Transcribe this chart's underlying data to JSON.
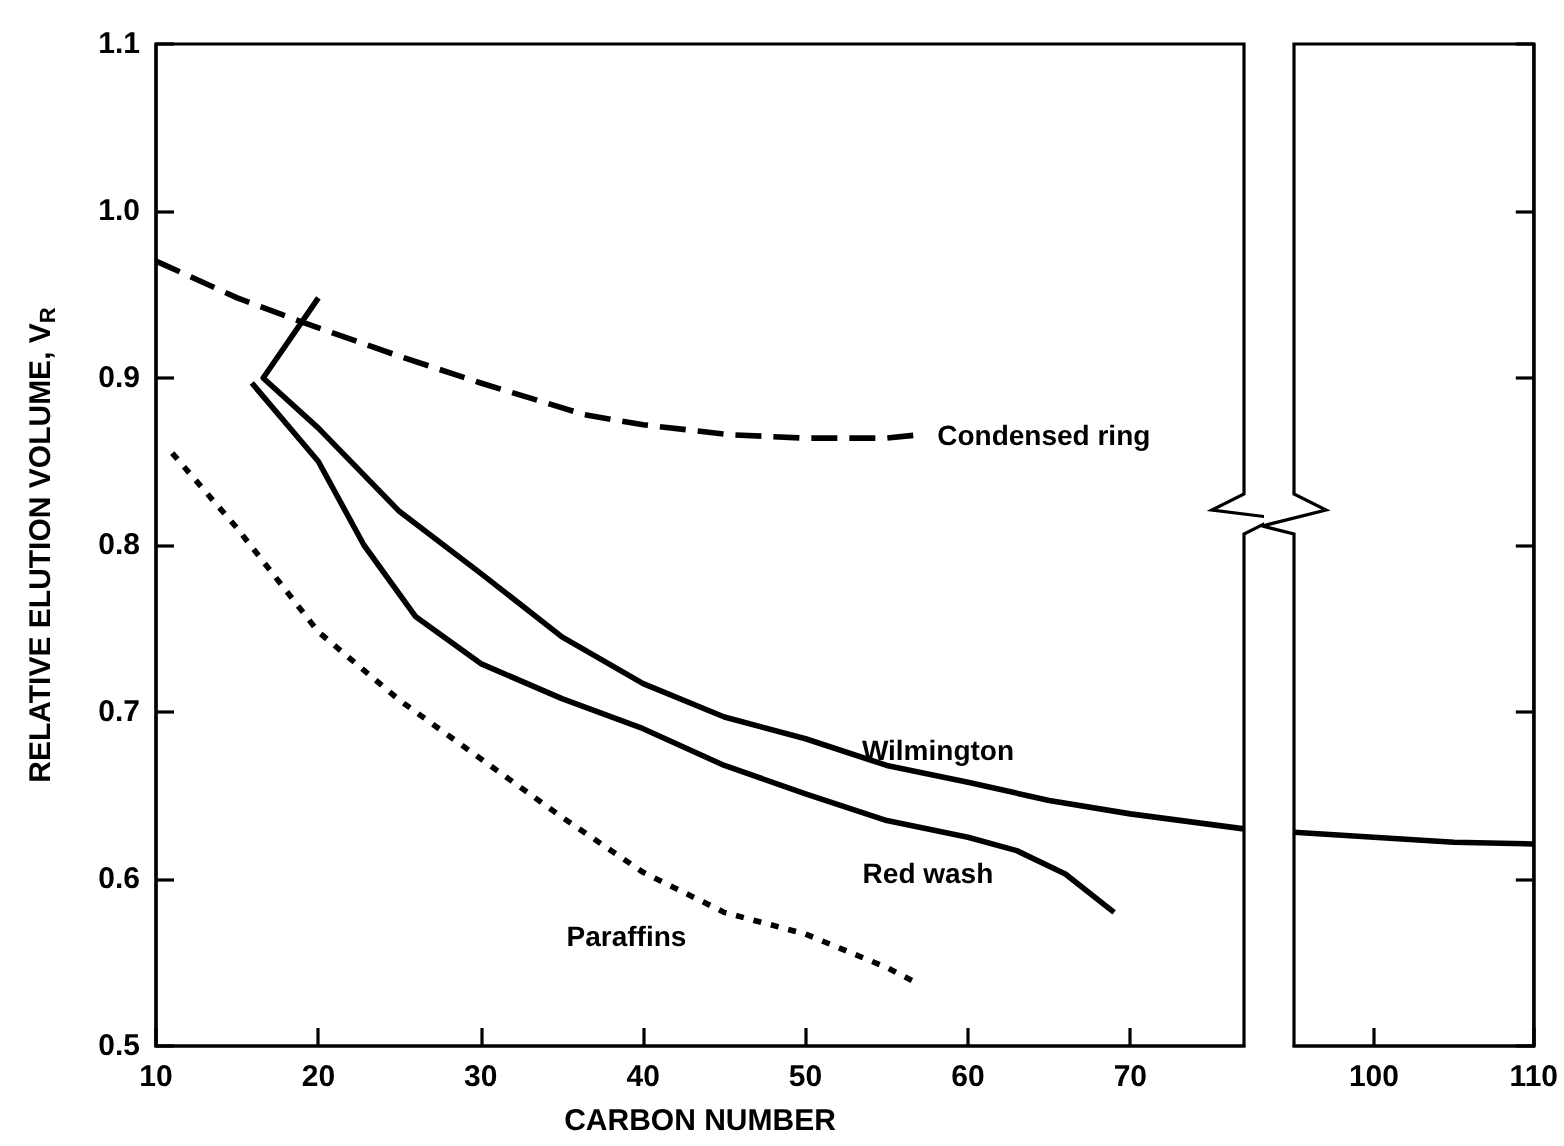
{
  "chart_data": [
    {
      "type": "line",
      "xlabel": "CARBON NUMBER",
      "ylabel": "RELATIVE ELUTION VOLUME, V$_{R}$",
      "xlim": [
        10,
        77
      ],
      "xticks": [
        10,
        20,
        30,
        40,
        50,
        60,
        70
      ],
      "ylim": [
        0.5,
        1.1
      ],
      "yticks": [
        {
          "value": 0.5,
          "label": "0.5"
        },
        0.6,
        0.7,
        0.8,
        0.9,
        {
          "value": 1.0,
          "label": "1.0"
        },
        1.1
      ],
      "grid": false,
      "legend": false,
      "marker": "none",
      "series": [
        {
          "name": "Condensed ring",
          "color": "#000000",
          "line_style": "dashed",
          "x": [
            10,
            15,
            19.7,
            25,
            30,
            36.4,
            40,
            45.4,
            50,
            55,
            57
          ],
          "values": [
            0.97,
            0.948,
            0.931,
            0.913,
            0.897,
            0.878,
            0.872,
            0.866,
            0.864,
            0.864,
            0.866
          ]
        },
        {
          "name": "Wilmington",
          "color": "#000000",
          "line_style": "solid",
          "x": [
            20,
            16.6,
            20,
            25,
            30,
            35,
            40,
            45,
            50,
            55,
            60,
            65,
            70,
            77
          ],
          "values": [
            0.948,
            0.9,
            0.87,
            0.82,
            0.783,
            0.745,
            0.717,
            0.697,
            0.684,
            0.668,
            0.658,
            0.647,
            0.639,
            0.63
          ]
        },
        {
          "name": "Red wash",
          "color": "#000000",
          "line_style": "solid",
          "x": [
            15.9,
            20,
            22.8,
            26,
            30,
            35,
            40,
            45,
            50,
            55,
            60,
            63,
            66,
            69
          ],
          "values": [
            0.897,
            0.85,
            0.8,
            0.757,
            0.729,
            0.708,
            0.69,
            0.668,
            0.651,
            0.635,
            0.625,
            0.617,
            0.603,
            0.58
          ]
        },
        {
          "name": "Paraffins",
          "color": "#000000",
          "line_style": "dotted",
          "x": [
            11,
            15,
            20,
            25,
            30,
            35,
            40,
            45,
            50,
            55,
            57
          ],
          "values": [
            0.855,
            0.81,
            0.748,
            0.707,
            0.672,
            0.637,
            0.604,
            0.58,
            0.567,
            0.547,
            0.537
          ]
        }
      ]
    },
    {
      "type": "line",
      "xlim": [
        95,
        110
      ],
      "xticks": [
        100,
        110
      ],
      "ylim": [
        0.5,
        1.1
      ],
      "yticks": [
        0.5,
        0.6,
        0.7,
        0.8,
        0.9,
        1.0,
        1.1
      ],
      "tick_labels": "x",
      "grid": false,
      "legend": false,
      "marker": "none",
      "series": [
        {
          "color": "#000000",
          "line_style": "solid",
          "x": [
            95,
            100,
            105,
            110
          ],
          "values": [
            0.628,
            0.625,
            0.622,
            0.621
          ]
        }
      ]
    }
  ]
}
